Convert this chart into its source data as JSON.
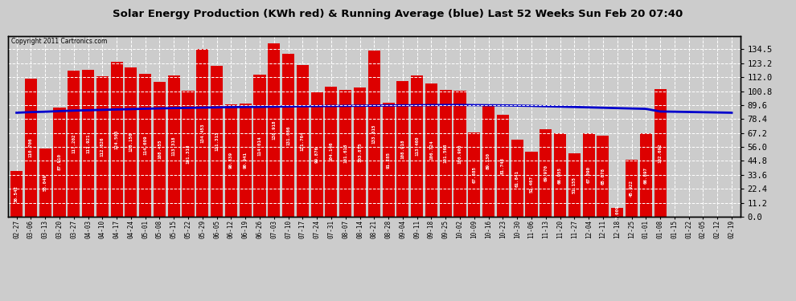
{
  "title": "Solar Energy Production (KWh red) & Running Average (blue) Last 52 Weeks Sun Feb 20 07:40",
  "copyright": "Copyright 2011 Cartronics.com",
  "bar_color": "#dd0000",
  "avg_color": "#0000cc",
  "bg_color": "#cccccc",
  "plot_bg": "#cccccc",
  "ylim": [
    0,
    145
  ],
  "yticks": [
    0.0,
    11.2,
    22.4,
    33.6,
    44.8,
    56.0,
    67.2,
    78.4,
    89.6,
    100.8,
    112.0,
    123.2,
    134.5
  ],
  "dates": [
    "02-27",
    "03-06",
    "03-13",
    "03-20",
    "03-27",
    "04-03",
    "04-10",
    "04-17",
    "04-24",
    "05-01",
    "05-08",
    "05-15",
    "05-22",
    "05-29",
    "06-05",
    "06-12",
    "06-19",
    "06-26",
    "07-03",
    "07-10",
    "07-17",
    "07-24",
    "07-31",
    "08-07",
    "08-14",
    "08-21",
    "08-28",
    "09-04",
    "09-11",
    "09-18",
    "09-25",
    "10-02",
    "10-09",
    "10-16",
    "10-23",
    "10-30",
    "11-06",
    "11-13",
    "11-20",
    "11-27",
    "12-04",
    "12-11",
    "12-18",
    "12-25",
    "01-01",
    "01-08",
    "01-15",
    "01-22",
    "02-05",
    "02-12",
    "02-19"
  ],
  "values": [
    36.542,
    110.706,
    55.049,
    87.91,
    117.202,
    117.921,
    112.826,
    124.505,
    120.15,
    114.609,
    108.455,
    113.318,
    101.318,
    134.453,
    121.313,
    90.339,
    90.941,
    114.014,
    138.918,
    131.086,
    121.764,
    99.876,
    104.146,
    101.613,
    103.875,
    133.615,
    91.285,
    108.918,
    113.46,
    106.724,
    101.563,
    100.9,
    67.885,
    89.13,
    81.748,
    61.841,
    52.467,
    69.97,
    66.955,
    51.155,
    67.09,
    65.078,
    7.009,
    45.922,
    66.897,
    102.692,
    0,
    0,
    0,
    0,
    0
  ],
  "avg_values": [
    83.5,
    84.0,
    84.3,
    84.8,
    85.2,
    85.5,
    85.8,
    86.1,
    86.4,
    86.7,
    87.0,
    87.2,
    87.4,
    87.6,
    87.8,
    88.0,
    88.1,
    88.2,
    88.4,
    88.5,
    88.7,
    88.8,
    88.9,
    89.0,
    89.1,
    89.2,
    89.3,
    89.4,
    89.5,
    89.6,
    89.7,
    89.7,
    89.6,
    89.5,
    89.4,
    89.2,
    89.0,
    88.7,
    88.4,
    88.1,
    87.8,
    87.5,
    87.2,
    86.9,
    86.6,
    84.5,
    84.3,
    84.1,
    83.9,
    83.7,
    83.5
  ]
}
